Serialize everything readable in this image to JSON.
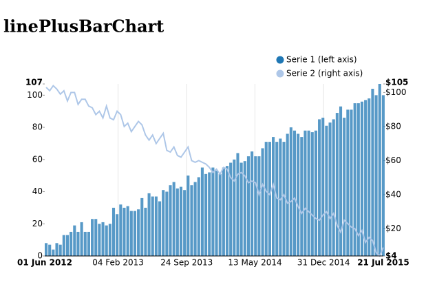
{
  "chart_data": {
    "type": "linePlusBar",
    "title": "linePlusBarChart",
    "x": [
      "2012-06-01",
      "2012-06-13",
      "2012-06-25",
      "2012-07-07",
      "2012-07-19",
      "2012-07-31",
      "2012-08-12",
      "2012-08-24",
      "2012-09-05",
      "2012-09-17",
      "2012-09-29",
      "2012-10-11",
      "2012-10-23",
      "2012-11-04",
      "2012-11-16",
      "2012-11-28",
      "2012-12-10",
      "2012-12-22",
      "2013-01-03",
      "2013-01-15",
      "2013-01-27",
      "2013-02-08",
      "2013-02-20",
      "2013-03-04",
      "2013-03-16",
      "2013-03-28",
      "2013-04-09",
      "2013-04-21",
      "2013-05-03",
      "2013-05-15",
      "2013-05-27",
      "2013-06-08",
      "2013-06-20",
      "2013-07-02",
      "2013-07-14",
      "2013-07-26",
      "2013-08-07",
      "2013-08-19",
      "2013-08-31",
      "2013-09-12",
      "2013-09-24",
      "2013-10-06",
      "2013-10-18",
      "2013-10-30",
      "2013-11-11",
      "2013-11-23",
      "2013-12-05",
      "2013-12-17",
      "2013-12-29",
      "2014-01-10",
      "2014-01-22",
      "2014-02-03",
      "2014-02-15",
      "2014-02-27",
      "2014-03-11",
      "2014-03-23",
      "2014-04-04",
      "2014-04-16",
      "2014-04-28",
      "2014-05-10",
      "2014-05-22",
      "2014-06-03",
      "2014-06-15",
      "2014-06-27",
      "2014-07-09",
      "2014-07-21",
      "2014-08-02",
      "2014-08-14",
      "2014-08-26",
      "2014-09-07",
      "2014-09-19",
      "2014-10-01",
      "2014-10-13",
      "2014-10-25",
      "2014-11-06",
      "2014-11-18",
      "2014-11-30",
      "2014-12-12",
      "2014-12-24",
      "2015-01-05",
      "2015-01-17",
      "2015-01-29",
      "2015-02-10",
      "2015-02-22",
      "2015-03-06",
      "2015-03-18",
      "2015-03-30",
      "2015-04-11",
      "2015-04-23",
      "2015-05-05",
      "2015-05-17",
      "2015-05-29",
      "2015-06-10",
      "2015-06-22",
      "2015-07-04",
      "2015-07-16"
    ],
    "series": [
      {
        "name": "Serie 1 (left axis)",
        "color": "#1f77b4",
        "kind": "bar",
        "axis": "y",
        "values": [
          8,
          7,
          4,
          8,
          7,
          13,
          13,
          15,
          19,
          15,
          21,
          15,
          15,
          23,
          23,
          20,
          21,
          19,
          20,
          30,
          26,
          32,
          30,
          31,
          28,
          28,
          29,
          36,
          30,
          39,
          37,
          37,
          34,
          41,
          40,
          44,
          46,
          42,
          43,
          41,
          50,
          44,
          46,
          49,
          55,
          51,
          52,
          55,
          53,
          51,
          55,
          56,
          58,
          60,
          64,
          58,
          59,
          62,
          65,
          62,
          62,
          67,
          71,
          71,
          74,
          71,
          73,
          71,
          76,
          80,
          78,
          76,
          74,
          78,
          78,
          77,
          78,
          85,
          86,
          81,
          83,
          85,
          89,
          93,
          86,
          91,
          91,
          95,
          95,
          96,
          97,
          98,
          104,
          100,
          107,
          100
        ]
      },
      {
        "name": "Serie 2 (right axis)",
        "color": "#aec7e8",
        "kind": "line",
        "axis": "y2",
        "values": [
          103,
          101,
          104,
          102,
          99,
          101,
          95,
          100,
          100,
          93,
          96,
          96,
          92,
          91,
          87,
          89,
          85,
          92,
          85,
          84,
          89,
          87,
          80,
          82,
          77,
          80,
          83,
          81,
          75,
          72,
          75,
          70,
          73,
          76,
          66,
          65,
          68,
          63,
          62,
          65,
          68,
          60,
          59,
          60,
          59,
          58,
          56,
          53,
          55,
          52,
          56,
          55,
          50,
          48,
          52,
          53,
          51,
          47,
          48,
          47,
          40,
          46,
          42,
          40,
          46,
          38,
          37,
          40,
          35,
          36,
          38,
          33,
          29,
          32,
          30,
          28,
          26,
          25,
          28,
          30,
          26,
          29,
          22,
          18,
          25,
          23,
          21,
          20,
          16,
          19,
          12,
          15,
          13,
          6,
          4,
          9
        ]
      }
    ],
    "xlim": [
      "2012-06-01",
      "2015-07-21"
    ],
    "xticks": [
      {
        "value": "2012-06-01",
        "label": "01 Jun 2012"
      },
      {
        "value": "2013-02-04",
        "label": "04 Feb 2013"
      },
      {
        "value": "2013-09-24",
        "label": "24 Sep 2013"
      },
      {
        "value": "2014-05-13",
        "label": "13 May 2014"
      },
      {
        "value": "2014-12-31",
        "label": "31 Dec 2014"
      },
      {
        "value": "2015-07-21",
        "label": "21 Jul 2015"
      }
    ],
    "ylim": [
      0,
      107
    ],
    "yticks": [
      0,
      20,
      40,
      60,
      80,
      100,
      107
    ],
    "y2lim": [
      4,
      105
    ],
    "y2ticks": [
      {
        "value": 4,
        "label": "$4"
      },
      {
        "value": 20,
        "label": "$20"
      },
      {
        "value": 40,
        "label": "$40"
      },
      {
        "value": 60,
        "label": "$60"
      },
      {
        "value": 80,
        "label": "$80"
      },
      {
        "value": 100,
        "label": "$100"
      },
      {
        "value": 105,
        "label": "$105"
      }
    ],
    "grid": "x"
  }
}
